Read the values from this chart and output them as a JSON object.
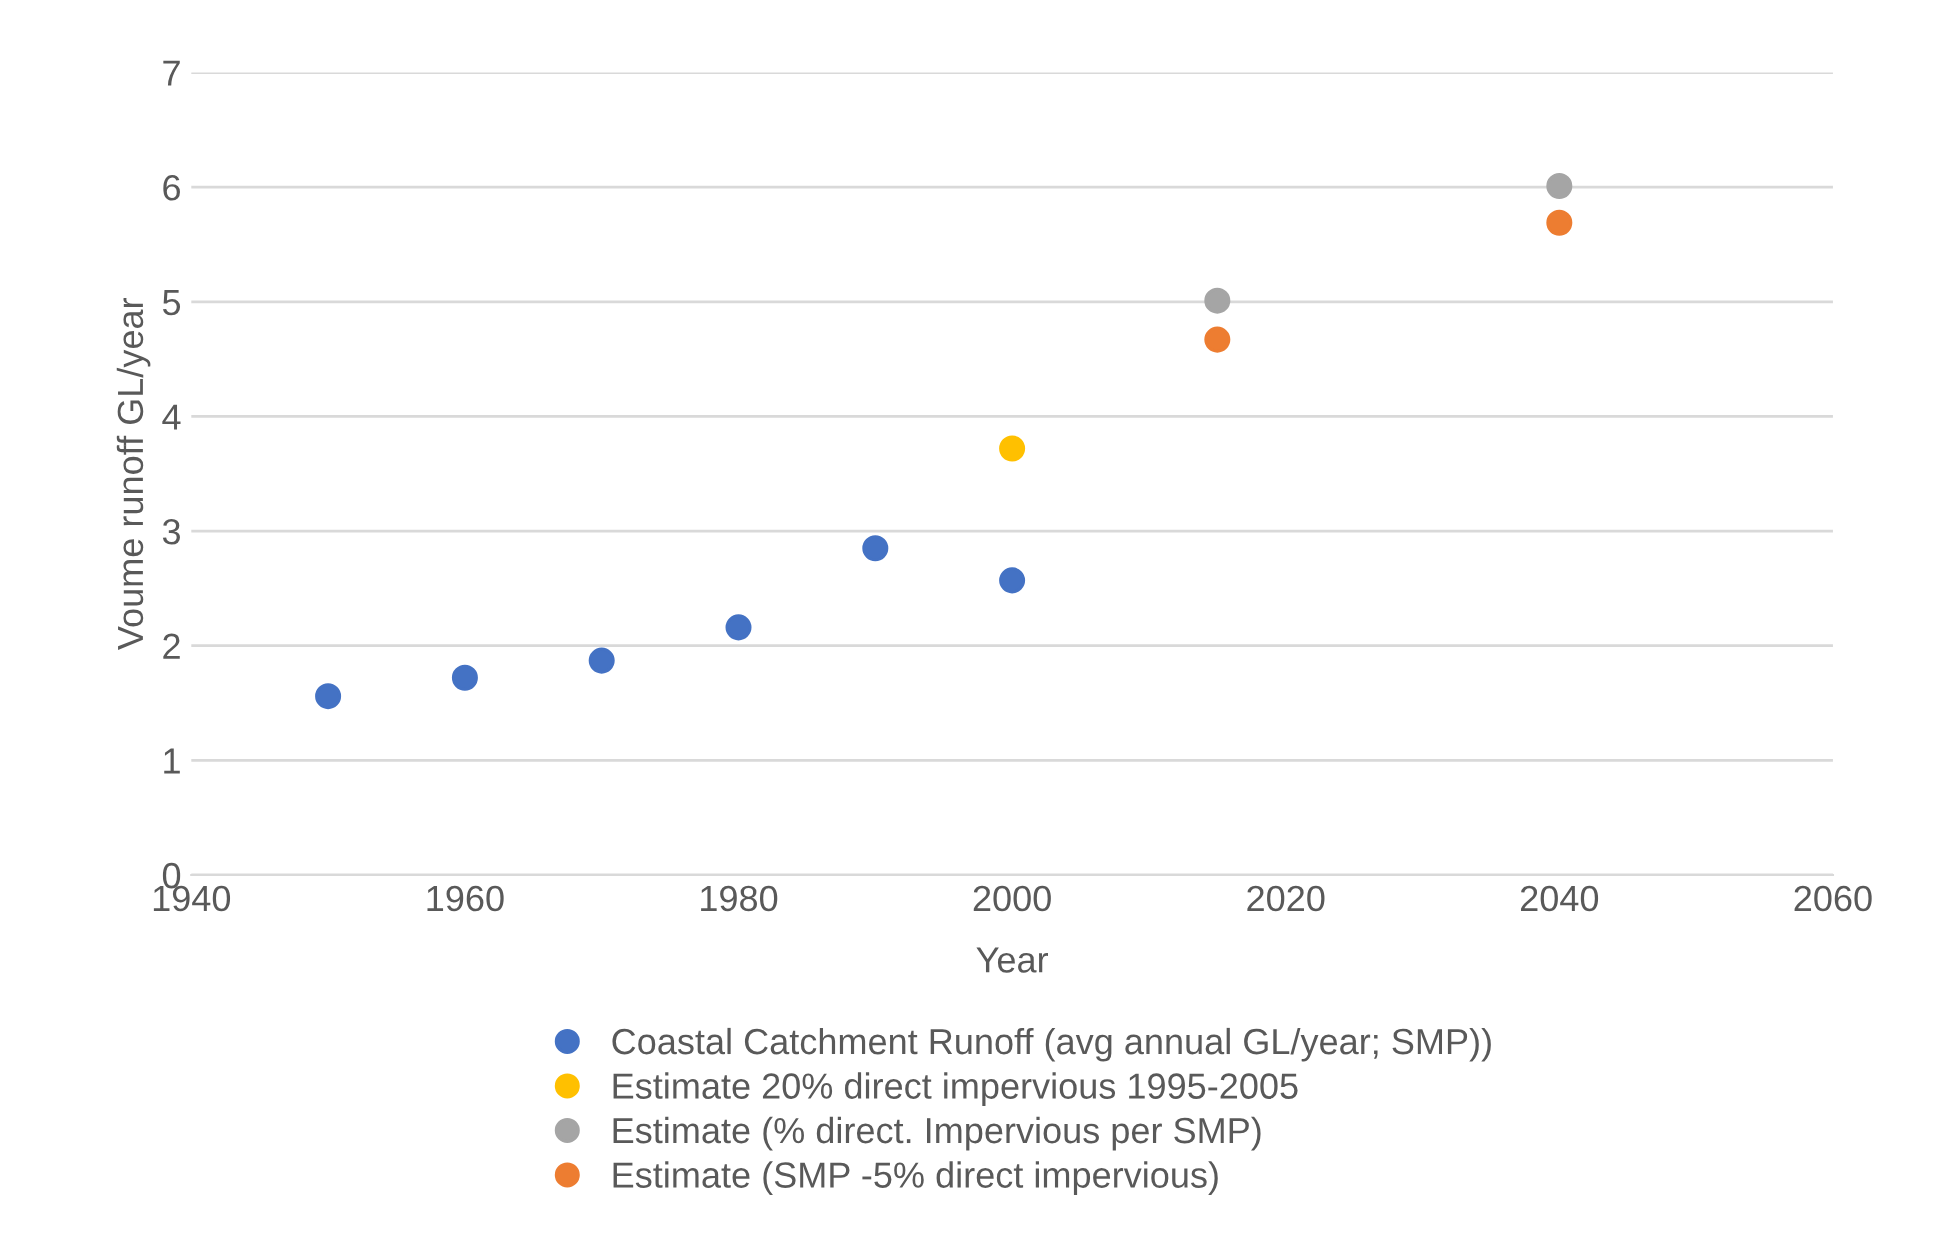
{
  "chart_data": {
    "type": "scatter",
    "xlabel": "Year",
    "ylabel": "Voume runoff GL/year",
    "xlim": [
      1940,
      2060
    ],
    "xticks": [
      1940,
      1960,
      1980,
      2000,
      2020,
      2040,
      2060
    ],
    "ylim": [
      0,
      7
    ],
    "yticks": [
      0,
      1,
      2,
      3,
      4,
      5,
      6,
      7
    ],
    "grid": "y",
    "legend": "bottom",
    "marker": "circle",
    "series": [
      {
        "name": "Coastal Catchment Runoff (avg annual GL/year; SMP))",
        "color": "#4472c4",
        "x": [
          1950,
          1960,
          1970,
          1980,
          1990,
          2000
        ],
        "values": [
          1.56,
          1.72,
          1.87,
          2.16,
          2.85,
          2.57
        ]
      },
      {
        "name": "Estimate 20% direct impervious 1995-2005",
        "color": "#ffc000",
        "x": [
          2000
        ],
        "values": [
          3.72
        ]
      },
      {
        "name": "Estimate (% direct. Impervious per SMP)",
        "color": "#a5a5a5",
        "x": [
          2015,
          2040
        ],
        "values": [
          5.01,
          6.01
        ]
      },
      {
        "name": "Estimate (SMP -5% direct impervious)",
        "color": "#ed7d31",
        "x": [
          2015,
          2040
        ],
        "values": [
          4.67,
          5.69
        ]
      }
    ]
  }
}
